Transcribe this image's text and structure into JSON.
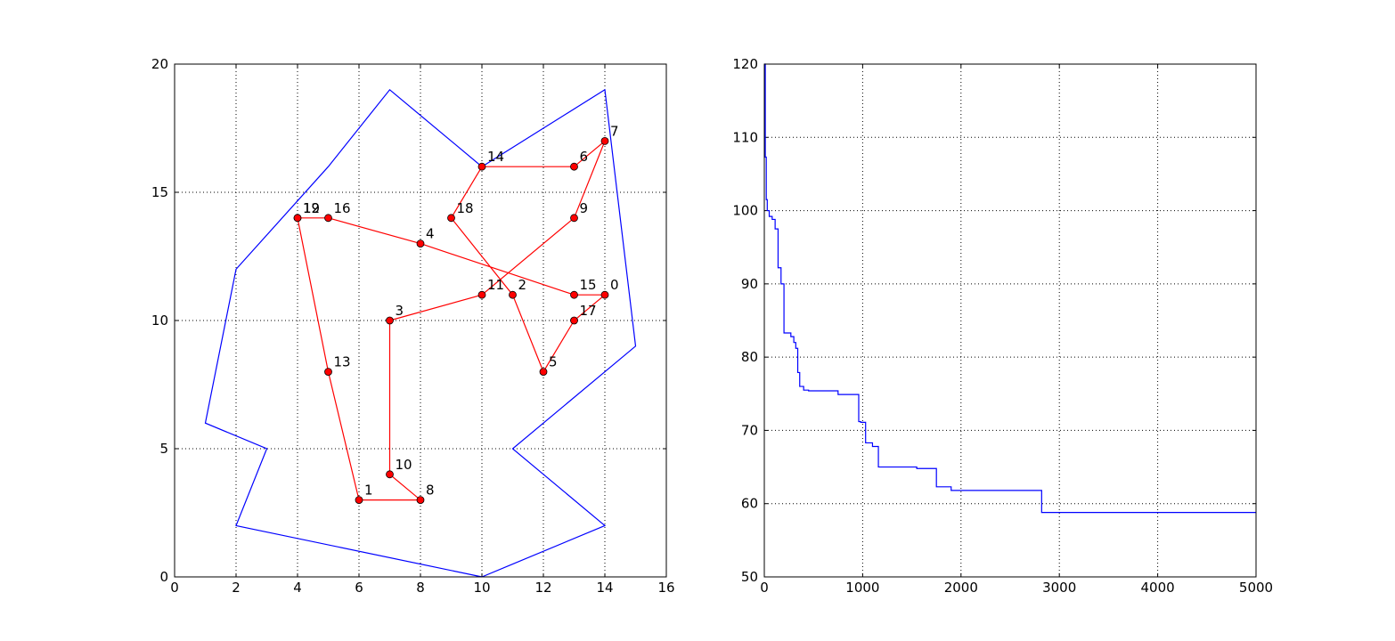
{
  "chart_data": [
    {
      "type": "line",
      "subtype": "route-map",
      "title": "",
      "xlabel": "",
      "ylabel": "",
      "xlim": [
        0,
        16
      ],
      "ylim": [
        0,
        20
      ],
      "xticks": [
        0,
        2,
        4,
        6,
        8,
        10,
        12,
        14,
        16
      ],
      "yticks": [
        0,
        5,
        10,
        15,
        20
      ],
      "grid": true,
      "boundary": {
        "color": "#0000ff",
        "points": [
          [
            10,
            0
          ],
          [
            14,
            2
          ],
          [
            11,
            5
          ],
          [
            15,
            9
          ],
          [
            14,
            19
          ],
          [
            10,
            16
          ],
          [
            7,
            19
          ],
          [
            5,
            16
          ],
          [
            2,
            12
          ],
          [
            1,
            6
          ],
          [
            3,
            5
          ],
          [
            2,
            2
          ],
          [
            10,
            0
          ]
        ]
      },
      "route": {
        "color": "#ff0000",
        "order": [
          0,
          15,
          4,
          16,
          12,
          19,
          13,
          1,
          8,
          10,
          3,
          11,
          9,
          7,
          6,
          14,
          18,
          2,
          5,
          17,
          0
        ]
      },
      "points": [
        {
          "label": "0",
          "x": 14,
          "y": 11
        },
        {
          "label": "1",
          "x": 6,
          "y": 3
        },
        {
          "label": "2",
          "x": 11,
          "y": 11
        },
        {
          "label": "3",
          "x": 7,
          "y": 10
        },
        {
          "label": "4",
          "x": 8,
          "y": 13
        },
        {
          "label": "5",
          "x": 12,
          "y": 8
        },
        {
          "label": "6",
          "x": 13,
          "y": 16
        },
        {
          "label": "7",
          "x": 14,
          "y": 17
        },
        {
          "label": "8",
          "x": 8,
          "y": 3
        },
        {
          "label": "9",
          "x": 13,
          "y": 14
        },
        {
          "label": "10",
          "x": 7,
          "y": 4
        },
        {
          "label": "11",
          "x": 10,
          "y": 11
        },
        {
          "label": "12",
          "x": 4,
          "y": 14
        },
        {
          "label": "13",
          "x": 5,
          "y": 8
        },
        {
          "label": "14",
          "x": 10,
          "y": 16
        },
        {
          "label": "15",
          "x": 13,
          "y": 11
        },
        {
          "label": "16",
          "x": 5,
          "y": 14
        },
        {
          "label": "17",
          "x": 13,
          "y": 10
        },
        {
          "label": "18",
          "x": 9,
          "y": 14
        },
        {
          "label": "19",
          "x": 4,
          "y": 14
        }
      ]
    },
    {
      "type": "line",
      "subtype": "step",
      "title": "",
      "xlabel": "",
      "ylabel": "",
      "xlim": [
        0,
        5000
      ],
      "ylim": [
        50,
        120
      ],
      "xticks": [
        0,
        1000,
        2000,
        3000,
        4000,
        5000
      ],
      "yticks": [
        50,
        60,
        70,
        80,
        90,
        100,
        110,
        120
      ],
      "grid": true,
      "color": "#0000ff",
      "x": [
        0,
        10,
        20,
        30,
        50,
        80,
        110,
        140,
        170,
        200,
        220,
        270,
        300,
        320,
        340,
        360,
        380,
        400,
        450,
        600,
        750,
        800,
        960,
        980,
        1030,
        1060,
        1100,
        1160,
        1500,
        1550,
        1750,
        1850,
        1900,
        2000,
        2820,
        5000
      ],
      "y": [
        120,
        107.3,
        101.5,
        100,
        99.2,
        98.8,
        97.5,
        92.2,
        90,
        83.3,
        83.3,
        82.8,
        82,
        81.2,
        77.9,
        76,
        76,
        75.5,
        75.4,
        75.4,
        74.9,
        74.9,
        71.2,
        71.1,
        68.3,
        68.3,
        67.8,
        65,
        65,
        64.8,
        62.3,
        62.3,
        61.8,
        61.8,
        58.8,
        58.8
      ]
    }
  ]
}
